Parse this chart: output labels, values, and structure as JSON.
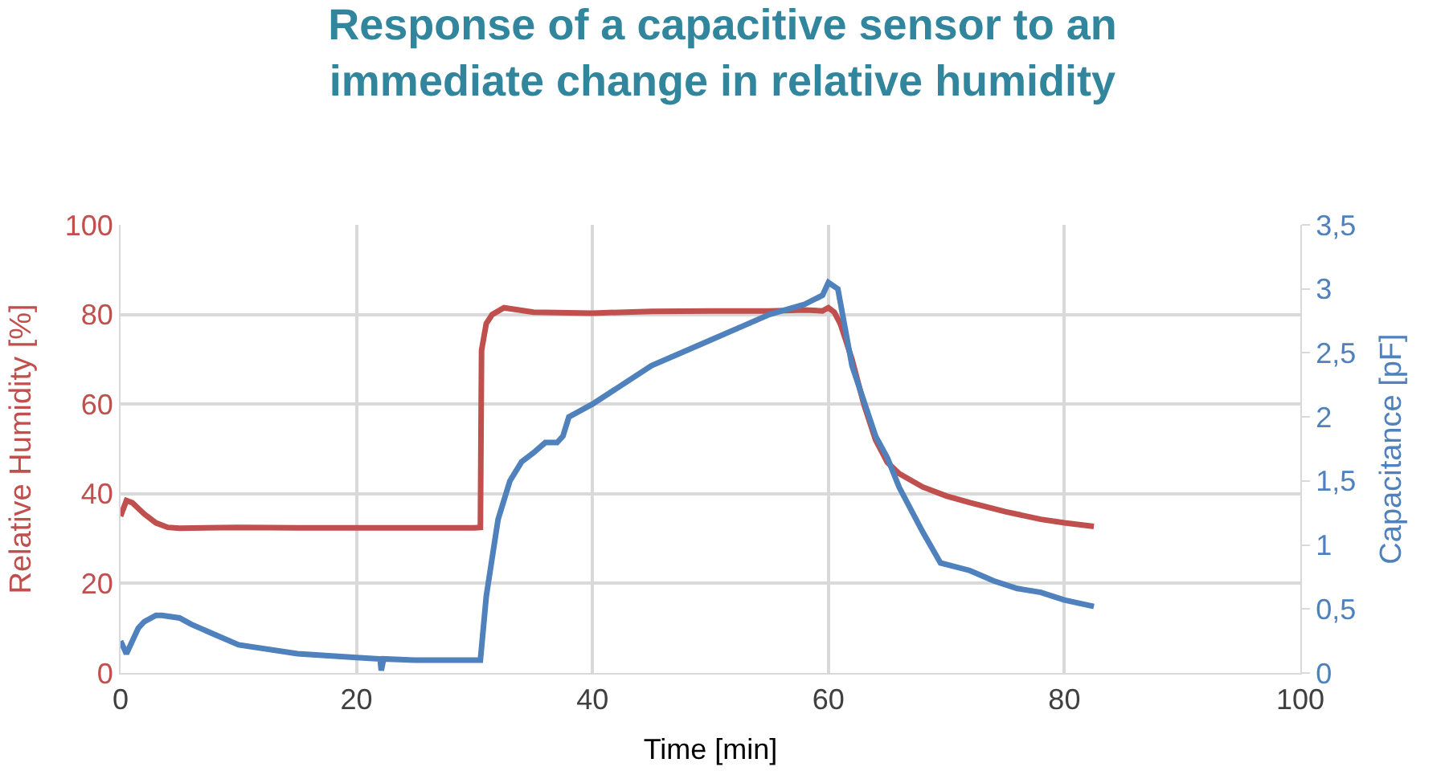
{
  "chart_data": {
    "type": "line",
    "title": "Response of a capacitive sensor to an immediate change in relative humidity",
    "xlabel": "Time [min]",
    "ylabel": "Relative Humidity [%]",
    "y2label": "Capacitance [pF]",
    "xlim": [
      0,
      100
    ],
    "xticks": [
      0,
      20,
      40,
      60,
      80,
      100
    ],
    "ylim": [
      0,
      100
    ],
    "yticks": [
      0,
      20,
      40,
      60,
      80,
      100
    ],
    "y2lim": [
      0,
      3.5
    ],
    "y2ticks": [
      0,
      {
        "value": 0.5,
        "label": "0,5"
      },
      1,
      {
        "value": 1.5,
        "label": "1,5"
      },
      2,
      {
        "value": 2.5,
        "label": "2,5"
      },
      3,
      {
        "value": 3.5,
        "label": "3,5"
      }
    ],
    "grid": true,
    "marker": "none",
    "line_style": "solid",
    "series": [
      {
        "color": "#c0504d",
        "x": [
          0,
          0.5,
          1,
          2,
          3,
          4,
          5,
          10,
          15,
          20,
          25,
          30,
          30.5,
          30.6,
          31,
          31.5,
          32.5,
          35,
          40,
          45,
          50,
          55,
          58,
          59.5,
          60,
          60.5,
          61,
          62,
          63,
          64,
          65,
          66,
          68,
          70,
          72,
          75,
          78,
          80,
          82.5
        ],
        "values": [
          35,
          38.5,
          38,
          35.5,
          33.5,
          32.5,
          32.3,
          32.5,
          32.4,
          32.4,
          32.4,
          32.4,
          32.5,
          72,
          78,
          80,
          81.5,
          80.5,
          80.3,
          80.7,
          80.8,
          80.8,
          81,
          80.8,
          81.5,
          80.5,
          78,
          70,
          60,
          52,
          47,
          44.5,
          41.5,
          39.5,
          38,
          36,
          34.3,
          33.5,
          32.7
        ]
      },
      {
        "color": "#4f81bd",
        "axis": "y2",
        "x": [
          0,
          0.5,
          1,
          1.5,
          2,
          3,
          3.5,
          5,
          6,
          8,
          10,
          15,
          20,
          22,
          22.1,
          22.3,
          25,
          30,
          30.5,
          31,
          31.5,
          32,
          33,
          34,
          35,
          36,
          37,
          37.5,
          38,
          40,
          42,
          45,
          48,
          50,
          53,
          55,
          58,
          59.5,
          60,
          60.8,
          62,
          64,
          65,
          66,
          68,
          69.5,
          72,
          74,
          76,
          78,
          80,
          82.5
        ],
        "values": [
          0.25,
          0.15,
          0.25,
          0.35,
          0.4,
          0.45,
          0.45,
          0.43,
          0.38,
          0.3,
          0.22,
          0.15,
          0.12,
          0.11,
          0.02,
          0.11,
          0.1,
          0.1,
          0.1,
          0.6,
          0.9,
          1.2,
          1.5,
          1.65,
          1.72,
          1.8,
          1.8,
          1.85,
          2.0,
          2.1,
          2.22,
          2.4,
          2.52,
          2.6,
          2.72,
          2.8,
          2.88,
          2.95,
          3.05,
          3.0,
          2.4,
          1.85,
          1.68,
          1.45,
          1.1,
          0.86,
          0.8,
          0.72,
          0.66,
          0.63,
          0.57,
          0.52
        ]
      }
    ]
  }
}
